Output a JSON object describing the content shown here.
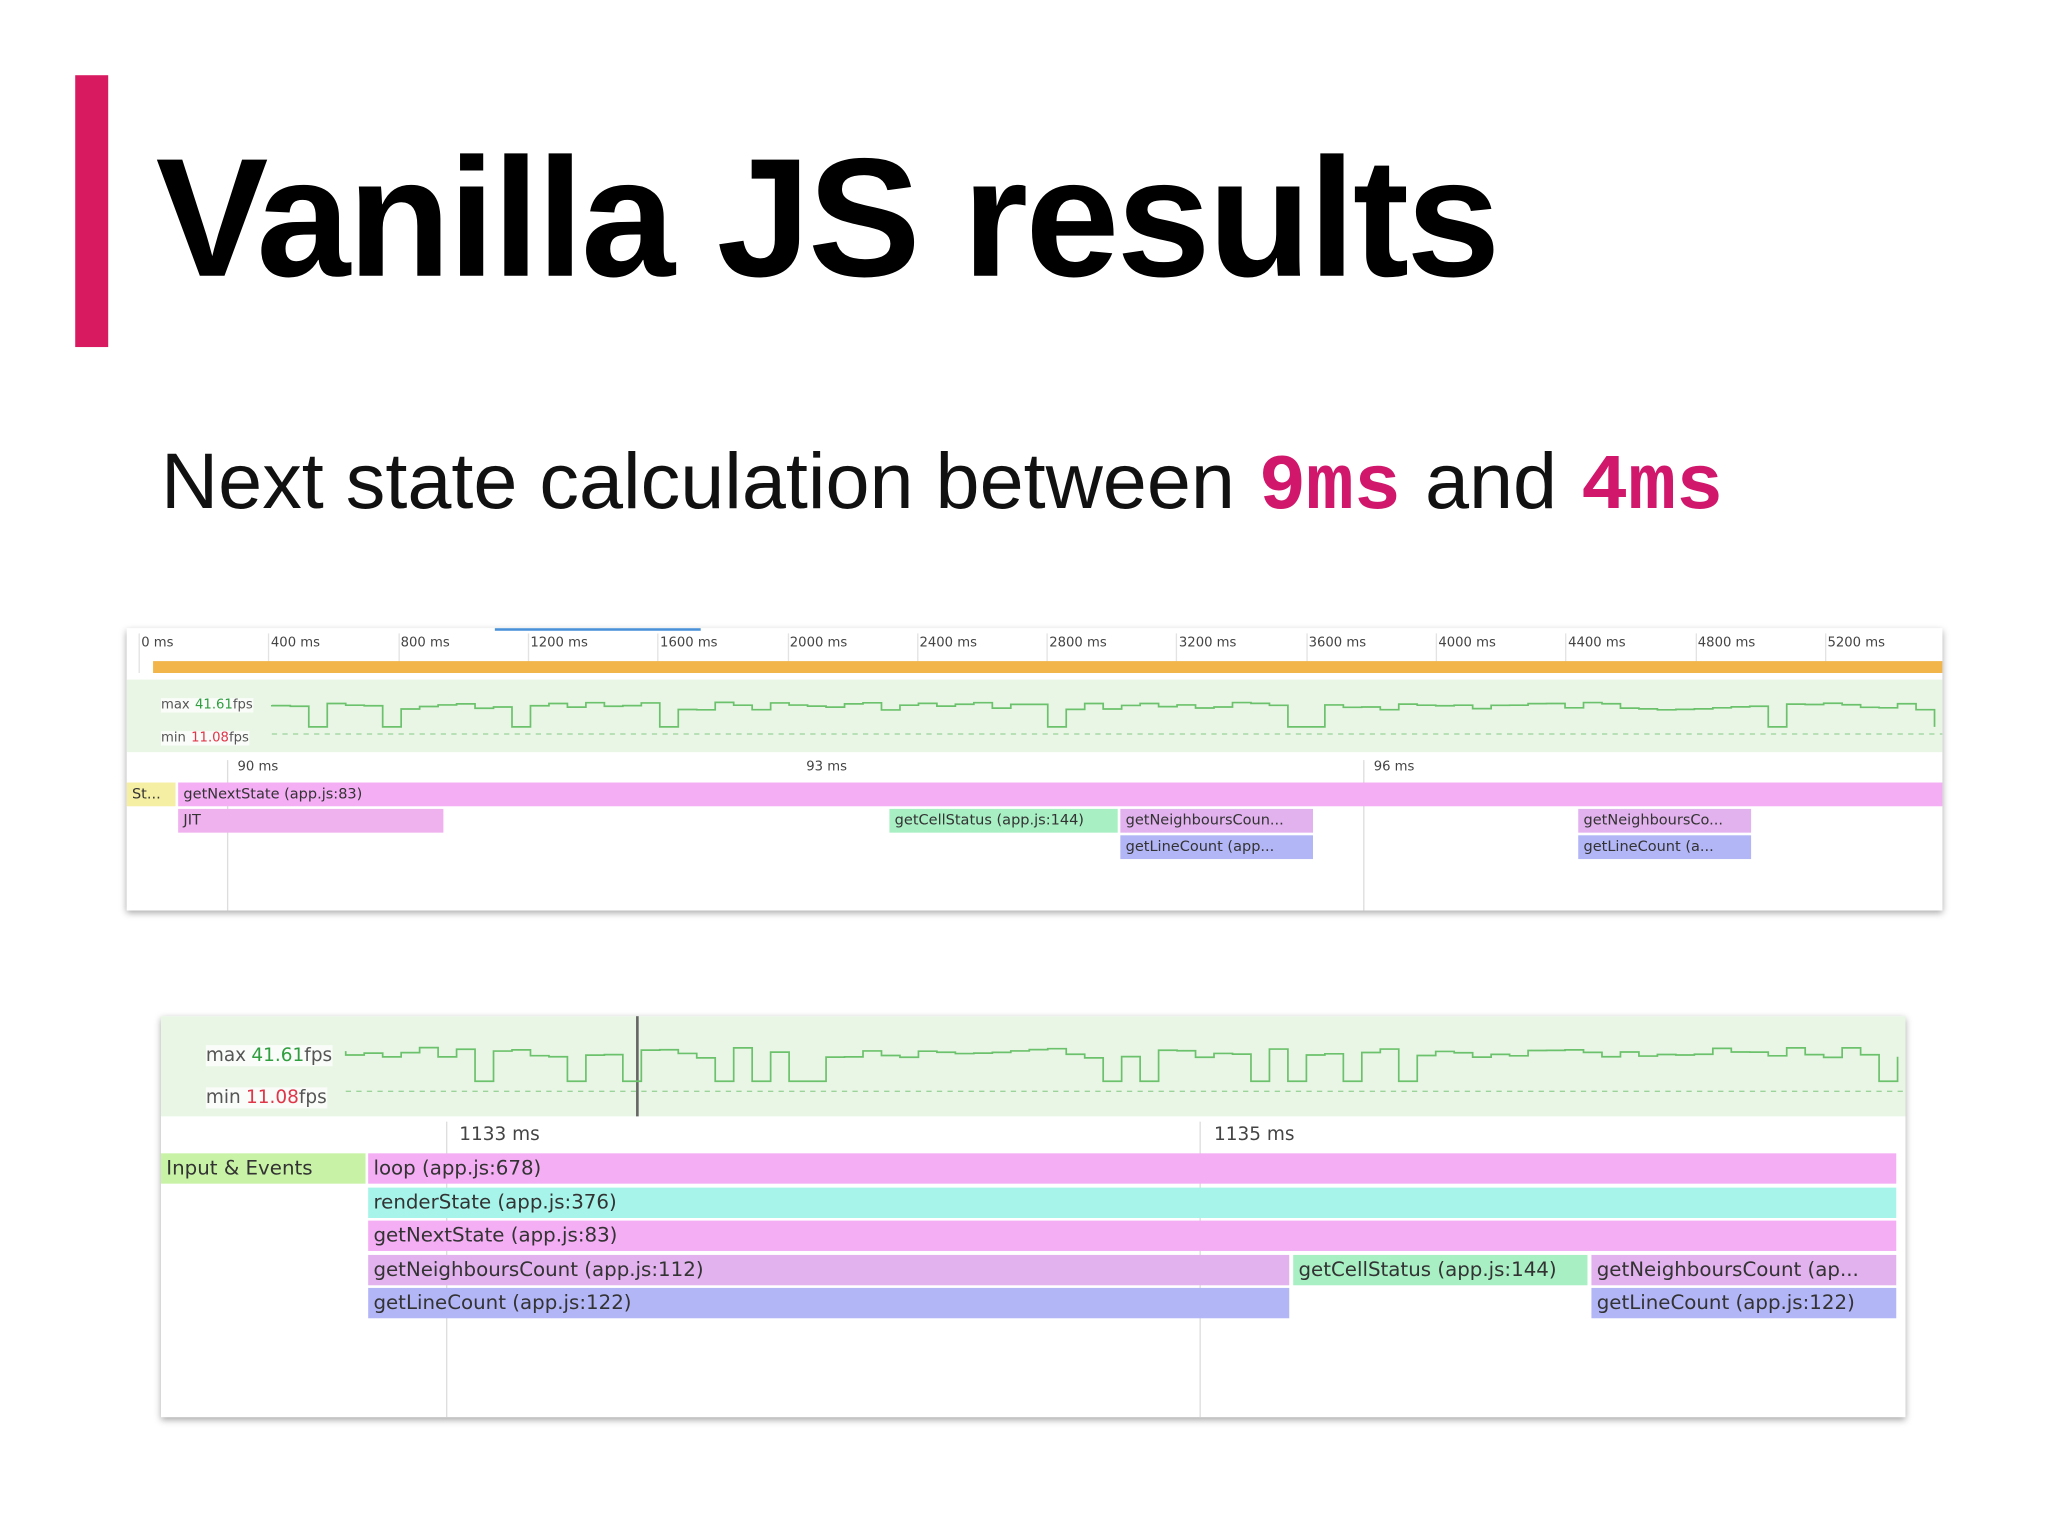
{
  "title": "Vanilla JS results",
  "subtitle": [
    "Next state calculation between",
    "9ms",
    "and",
    "4ms"
  ],
  "panel_1": {
    "ruler": [
      "0 ms",
      "400 ms",
      "800 ms",
      "1200 ms",
      "1600 ms",
      "2000 ms",
      "2400 ms",
      "2800 ms",
      "3200 ms",
      "3600 ms",
      "4000 ms",
      "4400 ms",
      "4800 ms",
      "5200 ms"
    ],
    "fps_max": [
      "max",
      "41.61",
      "fps"
    ],
    "fps_min": [
      "min",
      "11.08",
      "fps"
    ],
    "time_labels": [
      "90 ms",
      "93 ms",
      "96 ms"
    ],
    "flame": [
      "St...",
      "getNextState (app.js:83)",
      "JIT",
      "getCellStatus (app.js:144)",
      "getNeighboursCoun...",
      "getNeighboursCo...",
      "getLineCount (app...",
      "getLineCount (a..."
    ]
  },
  "panel_2": {
    "fps_max": [
      "max",
      "41.61",
      "fps"
    ],
    "fps_min": [
      "min",
      "11.08",
      "fps"
    ],
    "time_labels": [
      "1133 ms",
      "1135 ms"
    ],
    "flame": [
      "Input & Events",
      "loop (app.js:678)",
      "renderState (app.js:376)",
      "getNextState (app.js:83)",
      "getNeighboursCount (app.js:112)",
      "getCellStatus (app.js:144)",
      "getNeighboursCount (ap...",
      "getLineCount (app.js:122)",
      "getLineCount (app.js:122)"
    ]
  }
}
